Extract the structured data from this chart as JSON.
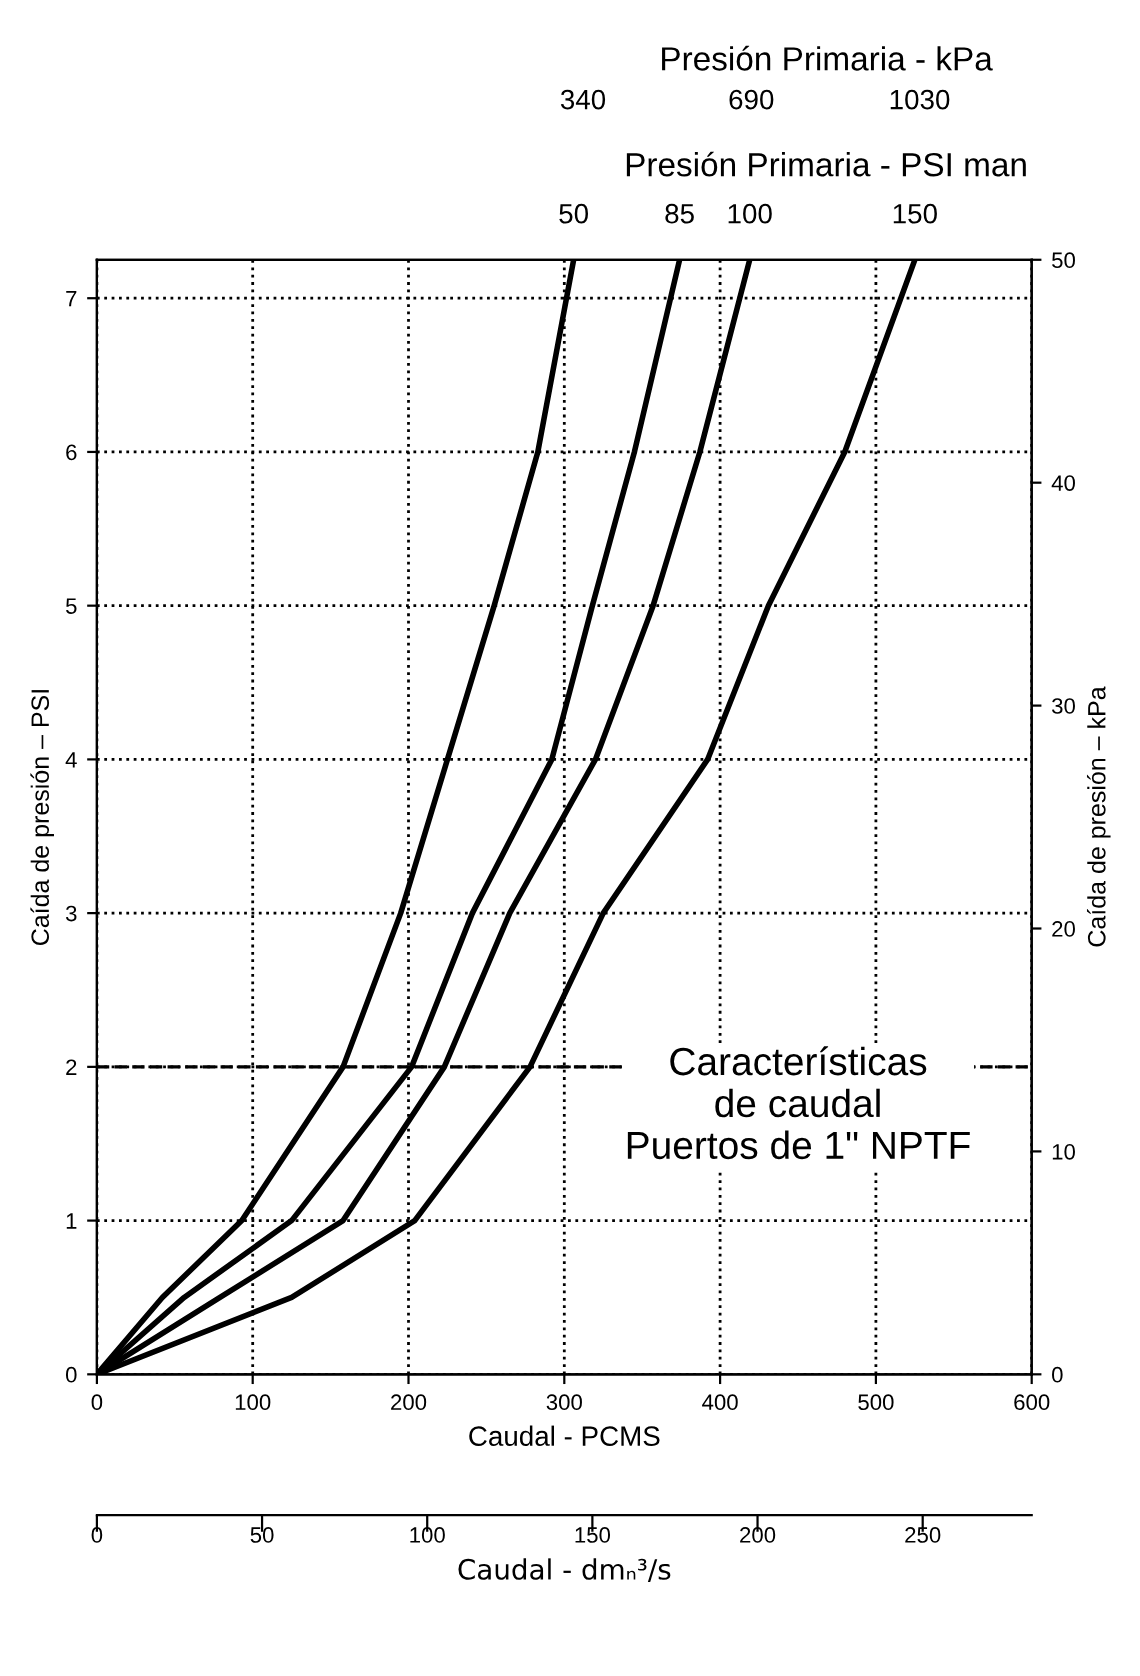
{
  "chart_data": {
    "type": "line",
    "title": "Presión Primaria - kPa",
    "subtitle": "Presión Primaria - PSI man",
    "xlabel": "Caudal - PCMS",
    "ylabel": "Caída de presión – PSI",
    "y2label": "Caída de presión – kPa",
    "x2label": "Caudal - dmₙ³/s",
    "annotations": [
      "340",
      "690",
      "1030",
      "Características\nde caudal\nPuertos de 1\" NPTF"
    ],
    "series": [
      {
        "name": "50",
        "color": "#000000",
        "x": [
          0,
          42,
          93,
          158,
          195,
          225,
          255,
          283,
          306
        ],
        "values": [
          0,
          0.5,
          1,
          2,
          3,
          4,
          5,
          6,
          7.25
        ]
      },
      {
        "name": "85",
        "color": "#000000",
        "x": [
          0,
          56,
          125,
          202,
          241,
          292,
          318,
          345,
          374
        ],
        "values": [
          0,
          0.5,
          1,
          2,
          3,
          4,
          5,
          6,
          7.25
        ]
      },
      {
        "name": "100",
        "color": "#000000",
        "x": [
          0,
          79,
          158,
          223,
          265,
          320,
          357,
          387,
          419
        ],
        "values": [
          0,
          0.5,
          1,
          2,
          3,
          4,
          5,
          6,
          7.25
        ]
      },
      {
        "name": "150",
        "color": "#000000",
        "x": [
          0,
          125,
          204,
          278,
          325,
          392,
          431,
          480,
          525
        ],
        "values": [
          0,
          0.5,
          1,
          2,
          3,
          4,
          5,
          6,
          7.25
        ]
      }
    ],
    "xlim": [
      0,
      600
    ],
    "xticks": [
      0,
      100,
      200,
      300,
      400,
      500,
      600
    ],
    "ylim": [
      0,
      7.25
    ],
    "yticks": [
      0,
      1,
      2,
      3,
      4,
      5,
      6,
      7
    ],
    "y2lim": [
      0,
      50
    ],
    "y2ticks": [
      0,
      10,
      20,
      30,
      40,
      50
    ],
    "x2lim": [
      0,
      283
    ],
    "x2ticks": [
      0,
      50,
      100,
      150,
      200,
      250
    ],
    "ref_lines": [
      {
        "axis": "y",
        "value": 2,
        "line_style": "dashed",
        "color": "#000000"
      }
    ],
    "grid": true,
    "legend": false,
    "marker": "none",
    "line_style": "solid"
  }
}
